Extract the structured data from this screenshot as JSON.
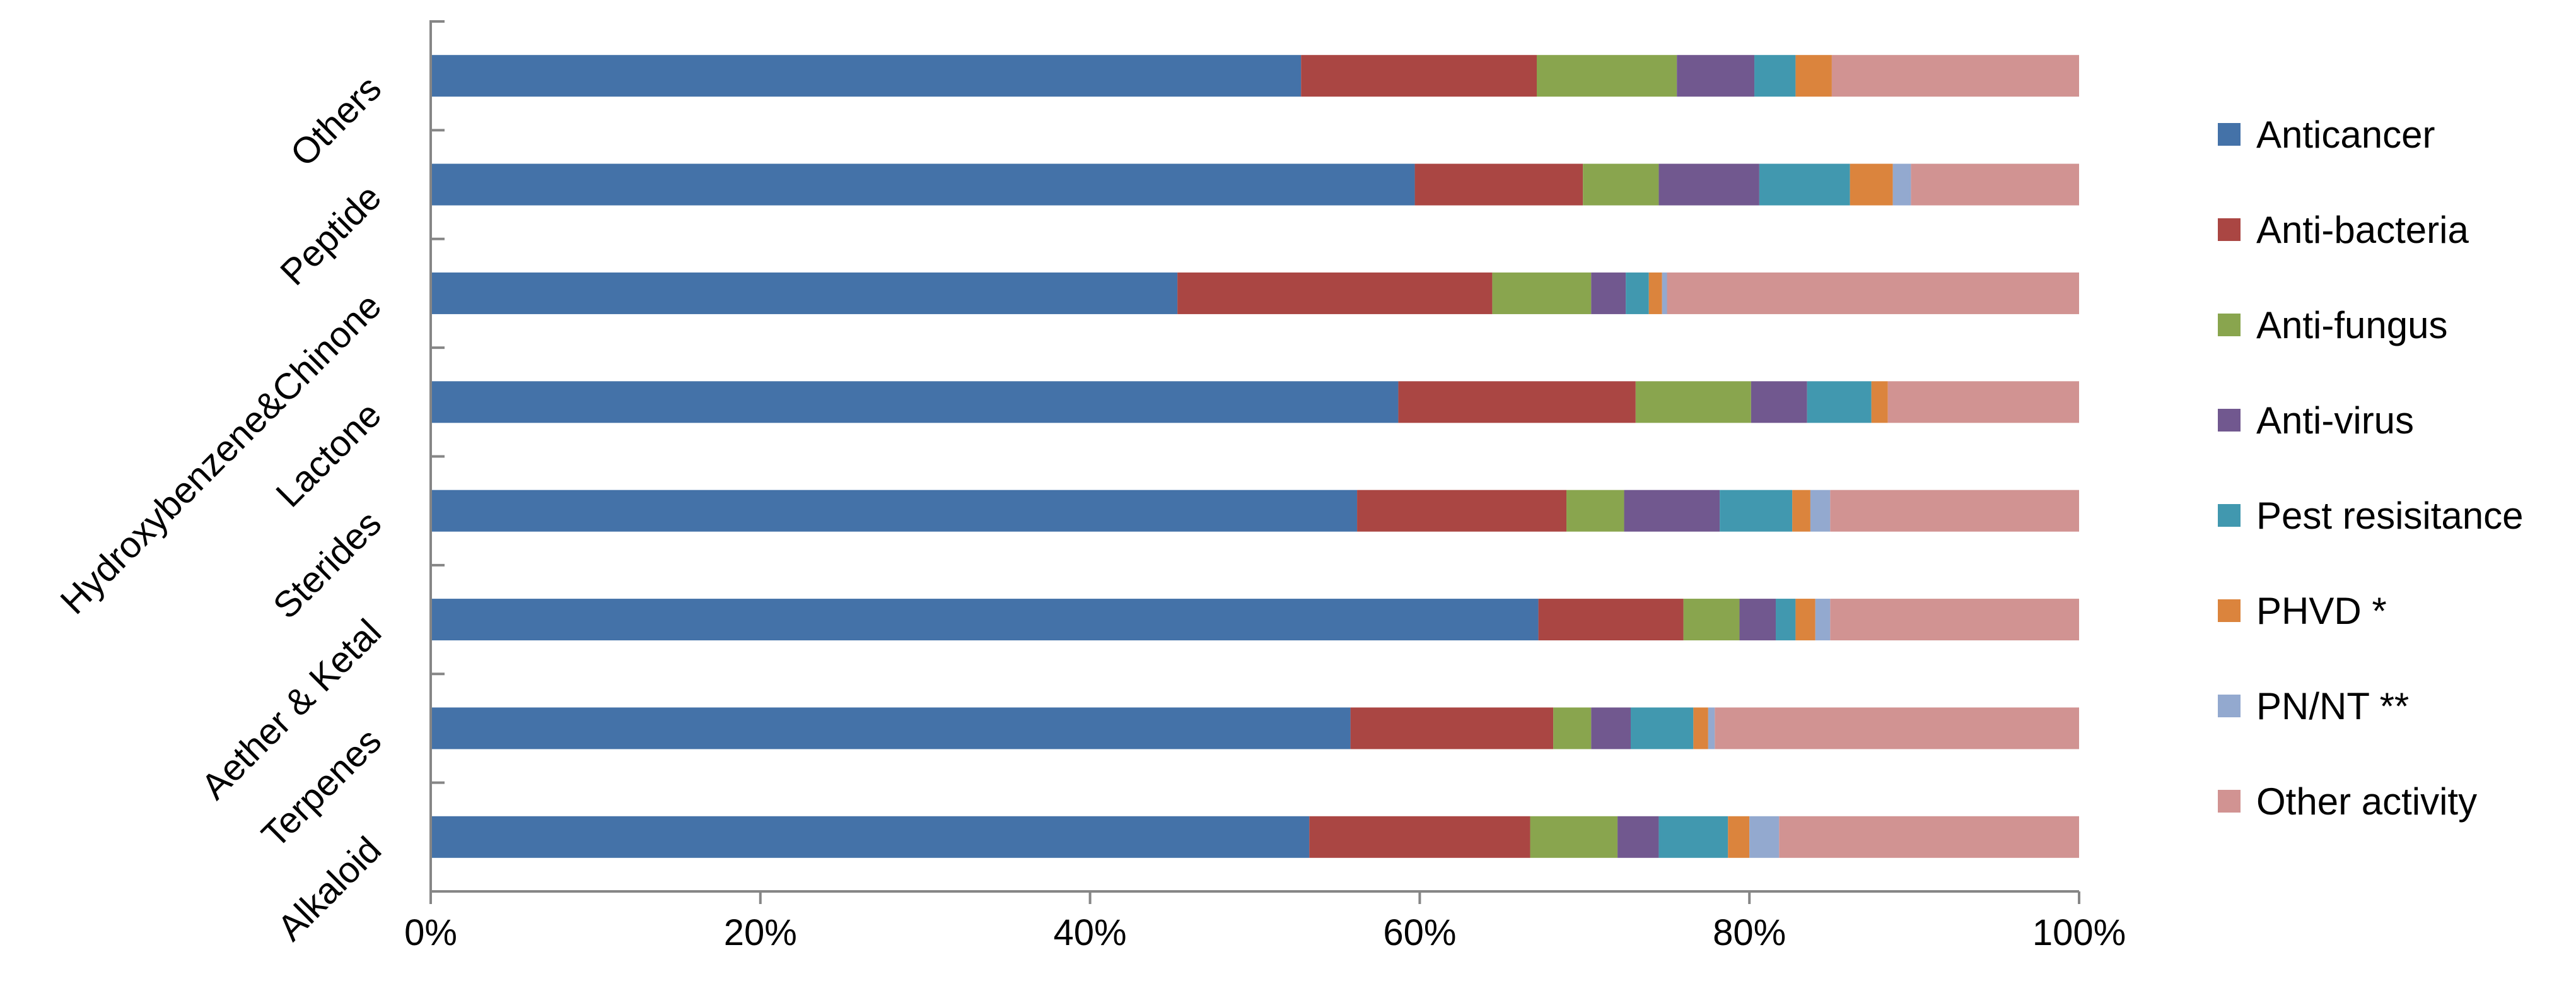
{
  "chart_data": {
    "type": "bar",
    "orientation": "horizontal",
    "stacked": "percent",
    "categories": [
      "Alkaloid",
      "Terpenes",
      "Aether & Ketal",
      "Sterides",
      "Lactone",
      "Hydroxybenzene&Chinone",
      "Peptide",
      "Others"
    ],
    "x_ticks": [
      "0%",
      "20%",
      "40%",
      "60%",
      "80%",
      "100%"
    ],
    "xlim": [
      0,
      100
    ],
    "legend_position": "right",
    "series": [
      {
        "name": "Anticancer",
        "color": "#4472A8",
        "values": [
          53.3,
          55.8,
          67.2,
          56.2,
          58.7,
          45.3,
          59.7,
          52.8
        ]
      },
      {
        "name": "Anti-bacteria",
        "color": "#AA4643",
        "values": [
          13.4,
          12.3,
          8.8,
          12.7,
          14.4,
          19.1,
          10.2,
          14.3
        ]
      },
      {
        "name": "Anti-fungus",
        "color": "#89A54E",
        "values": [
          5.3,
          2.3,
          3.4,
          3.5,
          7.0,
          6.0,
          4.6,
          8.5
        ]
      },
      {
        "name": "Anti-virus",
        "color": "#71588F",
        "values": [
          2.5,
          2.4,
          2.2,
          5.8,
          3.4,
          2.1,
          6.1,
          4.7
        ]
      },
      {
        "name": "Pest resisitance",
        "color": "#4198AF",
        "values": [
          4.2,
          3.8,
          1.2,
          4.4,
          3.9,
          1.4,
          5.5,
          2.5
        ]
      },
      {
        "name": "PHVD *",
        "color": "#DB843D",
        "values": [
          1.3,
          0.9,
          1.2,
          1.1,
          1.0,
          0.8,
          2.6,
          2.2
        ]
      },
      {
        "name": "PN/NT **",
        "color": "#93A9CF",
        "values": [
          1.8,
          0.4,
          0.9,
          1.2,
          0.0,
          0.3,
          1.1,
          0.0
        ]
      },
      {
        "name": "Other activity",
        "color": "#D19392",
        "values": [
          18.2,
          22.1,
          15.1,
          15.1,
          11.6,
          25.0,
          10.2,
          15.0
        ]
      }
    ]
  }
}
